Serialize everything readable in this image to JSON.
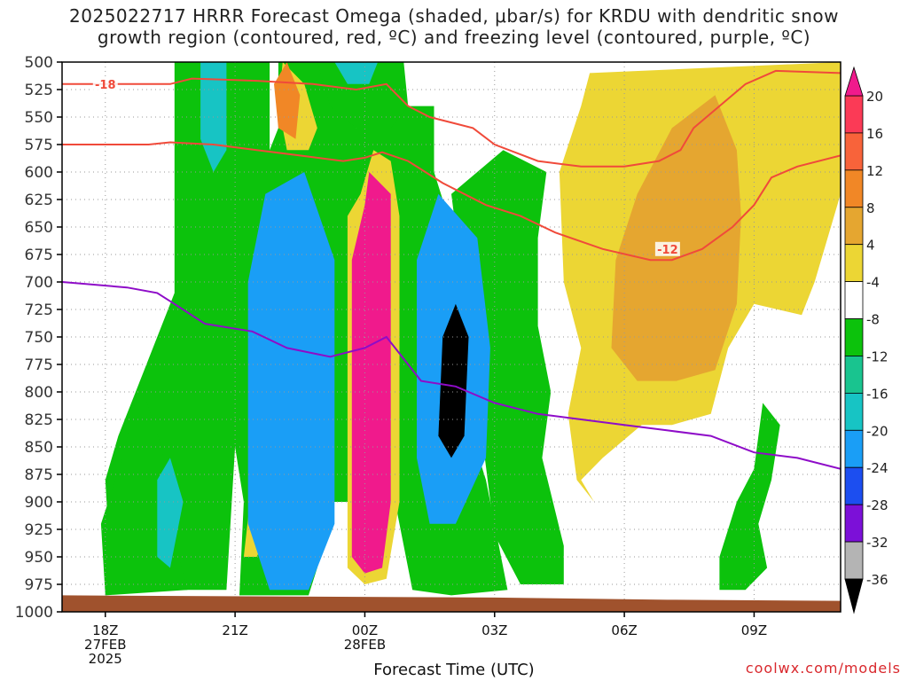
{
  "title_line1": "2025022717 HRRR Forecast Omega (shaded, μbar/s) for KRDU with dendritic snow",
  "title_line2": "growth region (contoured, red, ºC) and freezing level (contoured, purple, ºC)",
  "credit": "coolwx.com/models",
  "colors": {
    "background": "#ffffff",
    "grid": "#999999",
    "ground": "#a0522d",
    "red_contour": "#f04a3a",
    "purple_contour": "#8e0cc8"
  },
  "chart_data": {
    "type": "heatmap",
    "title": "2025022717 HRRR Forecast Omega (shaded, μbar/s) for KRDU with dendritic snow growth region (contoured, red, ºC) and freezing level (contoured, purple, ºC)",
    "xlabel": "Forecast Time (UTC)",
    "ylabel": "",
    "x_unit": "hours UTC from 2025-02-27 17Z",
    "x_range": [
      "2025-02-27 17Z",
      "2025-02-28 11Z"
    ],
    "x_ticks": [
      {
        "hour": 18,
        "label": "18Z",
        "sub1": "27FEB",
        "sub2": "2025"
      },
      {
        "hour": 21,
        "label": "21Z",
        "sub1": "",
        "sub2": ""
      },
      {
        "hour": 24,
        "label": "00Z",
        "sub1": "28FEB",
        "sub2": ""
      },
      {
        "hour": 27,
        "label": "03Z",
        "sub1": "",
        "sub2": ""
      },
      {
        "hour": 30,
        "label": "06Z",
        "sub1": "",
        "sub2": ""
      },
      {
        "hour": 33,
        "label": "09Z",
        "sub1": "",
        "sub2": ""
      }
    ],
    "x_min": 17,
    "x_max": 35,
    "y_ticks": [
      500,
      525,
      550,
      575,
      600,
      625,
      650,
      675,
      700,
      725,
      750,
      775,
      800,
      825,
      850,
      875,
      900,
      925,
      950,
      975,
      1000
    ],
    "y_range": [
      500,
      1000
    ],
    "y_axis": "pressure (hPa), decreasing upward",
    "grid": true,
    "colorbar": {
      "labels": [
        "20",
        "16",
        "12",
        "8",
        "4",
        "-4",
        "-8",
        "-12",
        "-16",
        "-20",
        "-24",
        "-28",
        "-32",
        "-36"
      ],
      "colors": [
        "#fb3a56",
        "#f8633a",
        "#f18726",
        "#e5a630",
        "#ecd634",
        "#ffffff",
        "#0cc20c",
        "#19c48f",
        "#17c4c4",
        "#1a9ef6",
        "#1c4ef0",
        "#7c10d8",
        "#b4b4b4"
      ],
      "top_cap": "#f01a8c",
      "bottom_cap": "#000000"
    },
    "regions": [
      {
        "name": "upper-green-left",
        "color": "#0cc20c",
        "pts": [
          [
            18.3,
            840
          ],
          [
            18.9,
            780
          ],
          [
            19.6,
            710
          ],
          [
            19.6,
            500
          ],
          [
            21.8,
            500
          ],
          [
            21.8,
            580
          ],
          [
            22.0,
            560
          ],
          [
            22.0,
            500
          ],
          [
            23.5,
            500
          ],
          [
            23.8,
            560
          ],
          [
            24.5,
            540
          ],
          [
            25.6,
            540
          ],
          [
            25.6,
            600
          ],
          [
            26.0,
            650
          ],
          [
            25.8,
            700
          ],
          [
            26.0,
            780
          ],
          [
            26.8,
            880
          ],
          [
            27.3,
            980
          ],
          [
            26.0,
            985
          ],
          [
            25.1,
            980
          ],
          [
            24.7,
            900
          ],
          [
            23.2,
            900
          ],
          [
            22.9,
            960
          ],
          [
            22.7,
            985
          ],
          [
            21.1,
            985
          ],
          [
            21.2,
            900
          ],
          [
            21.0,
            850
          ],
          [
            20.8,
            980
          ],
          [
            18.6,
            980
          ],
          [
            18.1,
            950
          ],
          [
            18.0,
            880
          ]
        ]
      },
      {
        "name": "upper-green-right",
        "color": "#0cc20c",
        "pts": [
          [
            26.0,
            620
          ],
          [
            27.2,
            580
          ],
          [
            28.2,
            600
          ],
          [
            28.0,
            660
          ],
          [
            28.0,
            740
          ],
          [
            28.3,
            800
          ],
          [
            28.1,
            860
          ],
          [
            28.6,
            940
          ],
          [
            28.6,
            975
          ],
          [
            27.6,
            975
          ],
          [
            27.0,
            930
          ]
        ]
      },
      {
        "name": "lower-left-green",
        "color": "#0cc20c",
        "pts": [
          [
            17.9,
            920
          ],
          [
            18.4,
            860
          ],
          [
            18.8,
            790
          ],
          [
            19.3,
            850
          ],
          [
            19.7,
            950
          ],
          [
            19.9,
            980
          ],
          [
            18.0,
            985
          ]
        ]
      },
      {
        "name": "lower-right-green",
        "color": "#0cc20c",
        "pts": [
          [
            32.2,
            980
          ],
          [
            32.2,
            950
          ],
          [
            32.6,
            900
          ],
          [
            33.0,
            870
          ],
          [
            33.2,
            810
          ],
          [
            33.6,
            830
          ],
          [
            33.4,
            880
          ],
          [
            33.1,
            920
          ],
          [
            33.3,
            960
          ],
          [
            32.8,
            980
          ]
        ]
      },
      {
        "name": "upper-green-mid",
        "color": "#0cc20c",
        "pts": [
          [
            22.9,
            500
          ],
          [
            24.9,
            500
          ],
          [
            25.0,
            540
          ],
          [
            24.6,
            560
          ],
          [
            23.8,
            560
          ],
          [
            23.2,
            540
          ]
        ]
      },
      {
        "name": "yellow-right",
        "color": "#ecd634",
        "pts": [
          [
            28.5,
            600
          ],
          [
            29.0,
            540
          ],
          [
            29.2,
            510
          ],
          [
            35.0,
            500
          ],
          [
            35.0,
            620
          ],
          [
            34.4,
            700
          ],
          [
            34.1,
            730
          ],
          [
            33.0,
            720
          ],
          [
            32.4,
            760
          ],
          [
            32.0,
            820
          ],
          [
            31.1,
            830
          ],
          [
            30.4,
            830
          ],
          [
            29.5,
            860
          ],
          [
            29.0,
            880
          ],
          [
            29.3,
            900
          ],
          [
            28.9,
            880
          ],
          [
            28.7,
            820
          ],
          [
            29.0,
            760
          ],
          [
            28.6,
            700
          ]
        ]
      },
      {
        "name": "yellow-left-bottom",
        "color": "#ecd634",
        "pts": [
          [
            21.4,
            880
          ],
          [
            21.6,
            860
          ],
          [
            21.9,
            850
          ],
          [
            22.0,
            910
          ],
          [
            21.5,
            950
          ],
          [
            21.2,
            950
          ]
        ]
      },
      {
        "name": "yellow-upper",
        "color": "#ecd634",
        "pts": [
          [
            22.1,
            500
          ],
          [
            22.6,
            520
          ],
          [
            22.9,
            560
          ],
          [
            22.7,
            580
          ],
          [
            22.2,
            580
          ],
          [
            22.0,
            540
          ]
        ]
      },
      {
        "name": "yellow-column",
        "color": "#ecd634",
        "pts": [
          [
            23.9,
            620
          ],
          [
            24.2,
            580
          ],
          [
            24.6,
            590
          ],
          [
            24.8,
            640
          ],
          [
            24.8,
            900
          ],
          [
            24.5,
            970
          ],
          [
            24.0,
            975
          ],
          [
            23.6,
            960
          ],
          [
            23.6,
            640
          ]
        ]
      },
      {
        "name": "orange-right",
        "color": "#e5a630",
        "pts": [
          [
            29.8,
            680
          ],
          [
            30.3,
            620
          ],
          [
            31.1,
            560
          ],
          [
            32.1,
            530
          ],
          [
            32.6,
            580
          ],
          [
            32.7,
            640
          ],
          [
            32.6,
            720
          ],
          [
            32.1,
            780
          ],
          [
            31.2,
            790
          ],
          [
            30.3,
            790
          ],
          [
            29.7,
            760
          ]
        ]
      },
      {
        "name": "orange-upper",
        "color": "#f18726",
        "pts": [
          [
            22.2,
            500
          ],
          [
            22.5,
            530
          ],
          [
            22.4,
            570
          ],
          [
            22.0,
            560
          ],
          [
            21.9,
            520
          ]
        ]
      },
      {
        "name": "cyan-left-upper",
        "color": "#17c4c4",
        "pts": [
          [
            20.2,
            500
          ],
          [
            20.8,
            500
          ],
          [
            20.8,
            580
          ],
          [
            20.5,
            600
          ],
          [
            20.2,
            570
          ]
        ]
      },
      {
        "name": "cyan-left-lower",
        "color": "#17c4c4",
        "pts": [
          [
            19.2,
            880
          ],
          [
            19.5,
            860
          ],
          [
            19.8,
            900
          ],
          [
            19.5,
            960
          ],
          [
            19.2,
            950
          ]
        ]
      },
      {
        "name": "cyan-mid-upper",
        "color": "#17c4c4",
        "pts": [
          [
            23.3,
            500
          ],
          [
            24.3,
            500
          ],
          [
            24.1,
            520
          ],
          [
            23.6,
            520
          ]
        ]
      },
      {
        "name": "magenta-column",
        "color": "#f01a8c",
        "pts": [
          [
            24.0,
            630
          ],
          [
            24.1,
            600
          ],
          [
            24.6,
            620
          ],
          [
            24.6,
            900
          ],
          [
            24.4,
            960
          ],
          [
            24.0,
            965
          ],
          [
            23.7,
            950
          ],
          [
            23.7,
            680
          ]
        ]
      },
      {
        "name": "black-core-left",
        "color": "#000000",
        "pts": [
          [
            21.8,
            700
          ],
          [
            22.0,
            640
          ],
          [
            22.6,
            640
          ],
          [
            23.0,
            700
          ],
          [
            23.0,
            900
          ],
          [
            22.6,
            960
          ],
          [
            22.1,
            960
          ],
          [
            21.8,
            900
          ]
        ]
      },
      {
        "name": "blue-ring-left",
        "color": "#1a9ef6",
        "pts": [
          [
            21.3,
            700
          ],
          [
            21.7,
            620
          ],
          [
            22.6,
            600
          ],
          [
            23.3,
            680
          ],
          [
            23.3,
            920
          ],
          [
            22.7,
            980
          ],
          [
            21.8,
            980
          ],
          [
            21.3,
            920
          ]
        ]
      },
      {
        "name": "blue-ring-right",
        "color": "#1a9ef6",
        "pts": [
          [
            25.2,
            680
          ],
          [
            25.7,
            620
          ],
          [
            26.6,
            660
          ],
          [
            26.9,
            760
          ],
          [
            26.8,
            860
          ],
          [
            26.1,
            920
          ],
          [
            25.5,
            920
          ],
          [
            25.2,
            860
          ]
        ]
      },
      {
        "name": "black-core-right",
        "color": "#000000",
        "pts": [
          [
            25.8,
            750
          ],
          [
            26.1,
            720
          ],
          [
            26.4,
            750
          ],
          [
            26.3,
            840
          ],
          [
            26.0,
            860
          ],
          [
            25.7,
            840
          ]
        ]
      }
    ],
    "red_contours": [
      {
        "label": "-18",
        "label_hour": 18.0,
        "label_p": 520,
        "points": [
          [
            17,
            520
          ],
          [
            18.5,
            520
          ],
          [
            19.5,
            520
          ],
          [
            20.0,
            515
          ],
          [
            21.5,
            517
          ],
          [
            22.8,
            520
          ],
          [
            23.8,
            525
          ],
          [
            24.5,
            520
          ],
          [
            25.0,
            540
          ],
          [
            25.5,
            550
          ],
          [
            26.5,
            560
          ],
          [
            27.0,
            575
          ],
          [
            28.0,
            590
          ],
          [
            29.0,
            595
          ],
          [
            30.0,
            595
          ],
          [
            30.8,
            590
          ],
          [
            31.3,
            580
          ],
          [
            31.6,
            560
          ],
          [
            32.2,
            540
          ],
          [
            32.8,
            520
          ],
          [
            33.5,
            508
          ],
          [
            35,
            510
          ]
        ]
      },
      {
        "label": "-12",
        "label_hour": 31.0,
        "label_p": 670,
        "points": [
          [
            17,
            575
          ],
          [
            18.0,
            575
          ],
          [
            19.0,
            575
          ],
          [
            19.5,
            573
          ],
          [
            20.5,
            575
          ],
          [
            21.5,
            580
          ],
          [
            22.5,
            585
          ],
          [
            23.5,
            590
          ],
          [
            24.0,
            587
          ],
          [
            24.4,
            582
          ],
          [
            25.0,
            590
          ],
          [
            25.8,
            610
          ],
          [
            26.8,
            630
          ],
          [
            27.6,
            640
          ],
          [
            28.4,
            655
          ],
          [
            29.5,
            670
          ],
          [
            30.6,
            680
          ],
          [
            31.1,
            680
          ],
          [
            31.8,
            670
          ],
          [
            32.5,
            650
          ],
          [
            33.0,
            630
          ],
          [
            33.4,
            605
          ],
          [
            34.0,
            595
          ],
          [
            35,
            585
          ]
        ]
      }
    ],
    "purple_contour": {
      "label": "freezing level",
      "points": [
        [
          17,
          700
        ],
        [
          18.5,
          705
        ],
        [
          19.2,
          710
        ],
        [
          19.6,
          720
        ],
        [
          20.3,
          738
        ],
        [
          21.4,
          745
        ],
        [
          22.2,
          760
        ],
        [
          23.2,
          768
        ],
        [
          24.0,
          760
        ],
        [
          24.5,
          750
        ],
        [
          24.7,
          760
        ],
        [
          25.3,
          790
        ],
        [
          26.1,
          795
        ],
        [
          27.0,
          810
        ],
        [
          28.0,
          820
        ],
        [
          29.0,
          825
        ],
        [
          30.0,
          830
        ],
        [
          31.0,
          835
        ],
        [
          32.0,
          840
        ],
        [
          33.0,
          855
        ],
        [
          34.0,
          860
        ],
        [
          35,
          870
        ]
      ]
    }
  }
}
